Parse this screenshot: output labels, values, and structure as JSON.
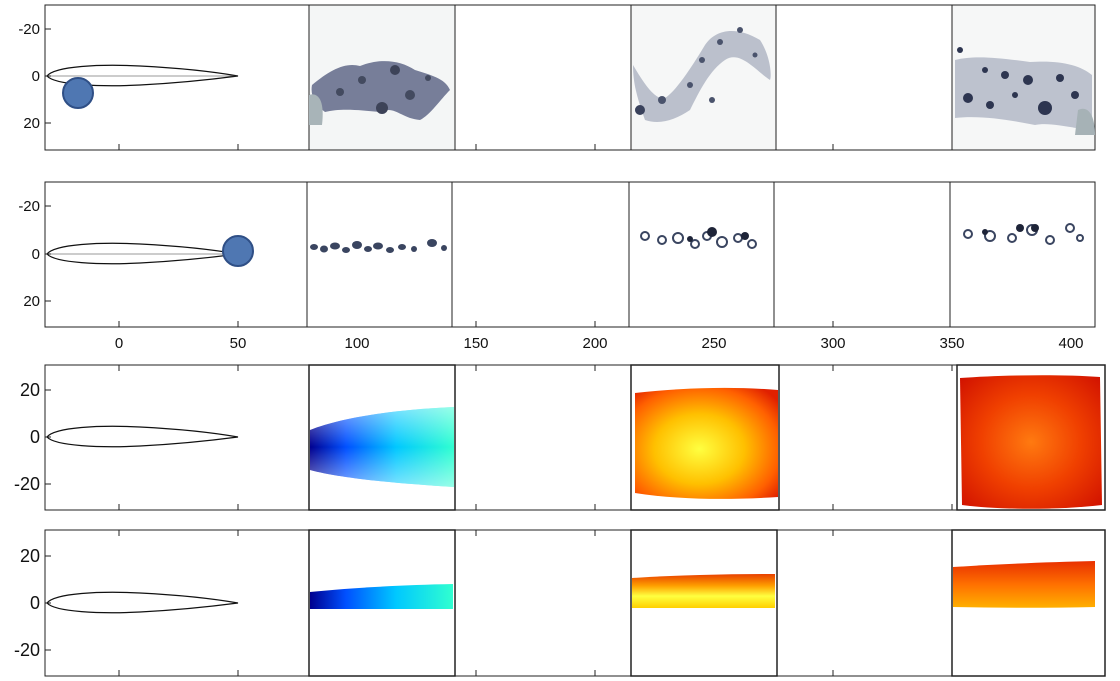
{
  "figure": {
    "panels": [
      {
        "id": "panel-1",
        "y_tick_labels": [
          "-20",
          "0",
          "20"
        ],
        "x_tick_labels": [],
        "marker": "circle",
        "marker_color": "#4f77b2",
        "image_style": "bubbles-sparse"
      },
      {
        "id": "panel-2",
        "y_tick_labels": [
          "-20",
          "0",
          "20"
        ],
        "x_tick_labels": [
          "0",
          "50",
          "100",
          "150",
          "200",
          "250",
          "300",
          "350",
          "400"
        ],
        "marker": "circle",
        "marker_color": "#4f77b2",
        "image_style": "bubbles-line"
      },
      {
        "id": "panel-3",
        "y_tick_labels": [
          "20",
          "0",
          "-20"
        ],
        "x_tick_labels": [],
        "image_style": "colormap-wide"
      },
      {
        "id": "panel-4",
        "y_tick_labels": [
          "20",
          "0",
          "-20"
        ],
        "x_tick_labels": [],
        "image_style": "colormap-narrow"
      }
    ],
    "colors": {
      "jet_low": "#0000c8",
      "jet_mid": "#00d8ff",
      "jet_yellow": "#ffff33",
      "jet_high": "#e62200",
      "bubble": "#3a4560"
    }
  }
}
